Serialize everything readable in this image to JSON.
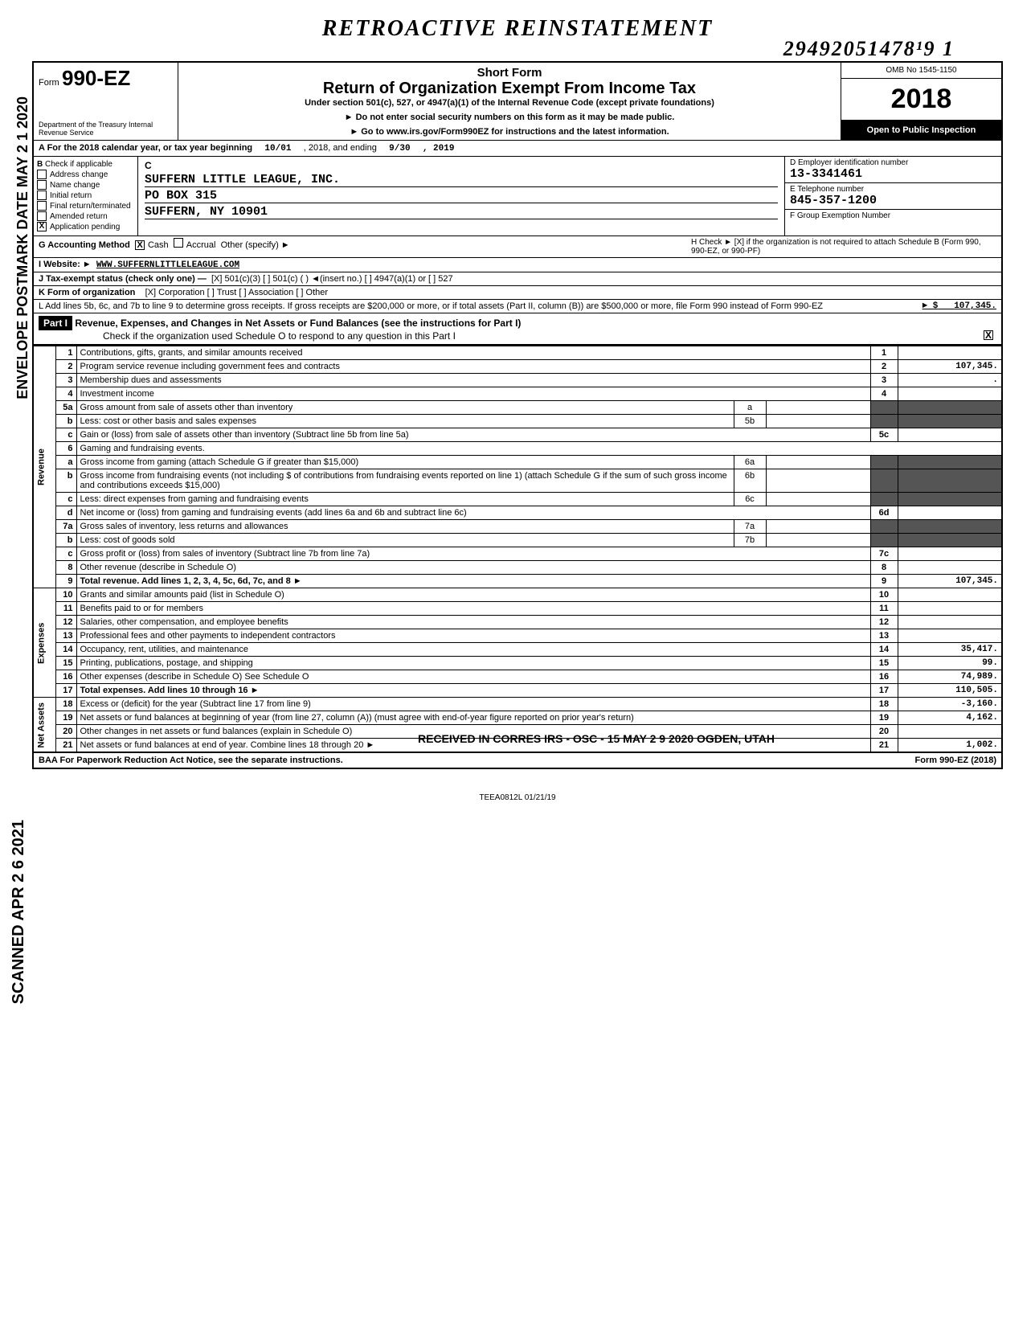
{
  "annotations": {
    "top_handwritten": "RETROACTIVE   REINSTATEMENT",
    "dln": "29492051478¹9  1",
    "side_left_top": "ENVELOPE\nPOSTMARK DATE MAY 2 1 2020",
    "side_left_bottom": "SCANNED APR 2 6 2021",
    "received_stamp": "RECEIVED IN CORRES\nIRS - OSC - 15\nMAY 2 9 2020\nOGDEN, UTAH"
  },
  "header": {
    "form_prefix": "Form",
    "form_number": "990-EZ",
    "dept": "Department of the Treasury\nInternal Revenue Service",
    "short_form": "Short Form",
    "title": "Return of Organization Exempt From Income Tax",
    "under_section": "Under section 501(c), 527, or 4947(a)(1) of the Internal Revenue Code (except private foundations)",
    "warn1": "► Do not enter social security numbers on this form as it may be made public.",
    "warn2": "► Go to www.irs.gov/Form990EZ for instructions and the latest information.",
    "omb": "OMB No 1545-1150",
    "year": "2018",
    "open_public": "Open to Public Inspection"
  },
  "row_a": {
    "label": "A  For the 2018 calendar year, or tax year beginning",
    "begin": "10/01",
    "mid": ", 2018, and ending",
    "end_month": "9/30",
    "end_year": ", 2019"
  },
  "section_b": {
    "label": "B",
    "check_if": "Check if applicable",
    "items": [
      {
        "label": "Address change",
        "checked": false
      },
      {
        "label": "Name change",
        "checked": false
      },
      {
        "label": "Initial return",
        "checked": false
      },
      {
        "label": "Final return/terminated",
        "checked": false
      },
      {
        "label": "Amended return",
        "checked": false
      },
      {
        "label": "Application pending",
        "checked": true
      }
    ]
  },
  "section_c": {
    "label": "C",
    "name": "SUFFERN LITTLE LEAGUE, INC.",
    "addr1": "PO BOX 315",
    "addr2": "SUFFERN, NY 10901"
  },
  "section_d": {
    "label": "D  Employer identification number",
    "value": "13-3341461"
  },
  "section_e": {
    "label": "E  Telephone number",
    "value": "845-357-1200"
  },
  "section_f": {
    "label": "F  Group Exemption Number",
    "value": ""
  },
  "row_g": {
    "label_g": "G  Accounting Method",
    "cash": "Cash",
    "cash_checked": true,
    "accrual": "Accrual",
    "other": "Other (specify) ►",
    "label_h": "H  Check ► [X] if the organization is not required to attach Schedule B (Form 990, 990-EZ, or 990-PF)"
  },
  "row_i": {
    "label": "I   Website: ►",
    "value": "WWW.SUFFERNLITTLELEAGUE.COM"
  },
  "row_j": {
    "label": "J  Tax-exempt status (check only one) —",
    "opts": "[X] 501(c)(3)    [ ] 501(c) (    ) ◄(insert no.)    [ ] 4947(a)(1) or    [ ] 527"
  },
  "row_k": {
    "label": "K  Form of organization",
    "opts": "[X] Corporation    [ ] Trust    [ ] Association    [ ] Other"
  },
  "row_l": {
    "text": "L  Add lines 5b, 6c, and 7b to line 9 to determine gross receipts. If gross receipts are $200,000 or more, or if total assets (Part II, column (B)) are $500,000 or more, file Form 990 instead of Form 990-EZ",
    "arrow": "► $",
    "amount": "107,345."
  },
  "part1": {
    "header_black": "Part I",
    "header_rest": "Revenue, Expenses, and Changes in Net Assets or Fund Balances (see the instructions for Part I)",
    "check_line": "Check if the organization used Schedule O to respond to any question in this Part I",
    "check_checked": true
  },
  "lines": {
    "revenue_label": "Revenue",
    "expenses_label": "Expenses",
    "netassets_label": "Net Assets",
    "r": [
      {
        "n": "1",
        "desc": "Contributions, gifts, grants, and similar amounts received",
        "ln": "1",
        "amt": ""
      },
      {
        "n": "2",
        "desc": "Program service revenue including government fees and contracts",
        "ln": "2",
        "amt": "107,345."
      },
      {
        "n": "3",
        "desc": "Membership dues and assessments",
        "ln": "3",
        "amt": "."
      },
      {
        "n": "4",
        "desc": "Investment income",
        "ln": "4",
        "amt": ""
      },
      {
        "n": "5a",
        "desc": "Gross amount from sale of assets other than inventory",
        "sub": "a"
      },
      {
        "n": "b",
        "desc": "Less: cost or other basis and sales expenses",
        "sub": "5b"
      },
      {
        "n": "c",
        "desc": "Gain or (loss) from sale of assets other than inventory (Subtract line 5b from line 5a)",
        "ln": "5c",
        "amt": ""
      },
      {
        "n": "6",
        "desc": "Gaming and fundraising events."
      },
      {
        "n": "a",
        "desc": "Gross income from gaming (attach Schedule G if greater than $15,000)",
        "sub": "6a"
      },
      {
        "n": "b",
        "desc": "Gross income from fundraising events (not including $              of contributions from fundraising events reported on line 1) (attach Schedule G if the sum of such gross income and contributions exceeds $15,000)",
        "sub": "6b"
      },
      {
        "n": "c",
        "desc": "Less: direct expenses from gaming and fundraising events",
        "sub": "6c"
      },
      {
        "n": "d",
        "desc": "Net income or (loss) from gaming and fundraising events (add lines 6a and 6b and subtract line 6c)",
        "ln": "6d",
        "amt": ""
      },
      {
        "n": "7a",
        "desc": "Gross sales of inventory, less returns and allowances",
        "sub": "7a"
      },
      {
        "n": "b",
        "desc": "Less: cost of goods sold",
        "sub": "7b"
      },
      {
        "n": "c",
        "desc": "Gross profit or (loss) from sales of inventory (Subtract line 7b from line 7a)",
        "ln": "7c",
        "amt": ""
      },
      {
        "n": "8",
        "desc": "Other revenue (describe in Schedule O)",
        "ln": "8",
        "amt": ""
      },
      {
        "n": "9",
        "desc": "Total revenue. Add lines 1, 2, 3, 4, 5c, 6d, 7c, and 8",
        "ln": "9",
        "amt": "107,345.",
        "bold": true,
        "arrow": true
      }
    ],
    "e": [
      {
        "n": "10",
        "desc": "Grants and similar amounts paid (list in Schedule O)",
        "ln": "10",
        "amt": ""
      },
      {
        "n": "11",
        "desc": "Benefits paid to or for members",
        "ln": "11",
        "amt": ""
      },
      {
        "n": "12",
        "desc": "Salaries, other compensation, and employee benefits",
        "ln": "12",
        "amt": ""
      },
      {
        "n": "13",
        "desc": "Professional fees and other payments to independent contractors",
        "ln": "13",
        "amt": ""
      },
      {
        "n": "14",
        "desc": "Occupancy, rent, utilities, and maintenance",
        "ln": "14",
        "amt": "35,417."
      },
      {
        "n": "15",
        "desc": "Printing, publications, postage, and shipping",
        "ln": "15",
        "amt": "99."
      },
      {
        "n": "16",
        "desc": "Other expenses (describe in Schedule O)                                   See Schedule O",
        "ln": "16",
        "amt": "74,989."
      },
      {
        "n": "17",
        "desc": "Total expenses. Add lines 10 through 16",
        "ln": "17",
        "amt": "110,505.",
        "bold": true,
        "arrow": true
      }
    ],
    "na": [
      {
        "n": "18",
        "desc": "Excess or (deficit) for the year (Subtract line 17 from line 9)",
        "ln": "18",
        "amt": "-3,160."
      },
      {
        "n": "19",
        "desc": "Net assets or fund balances at beginning of year (from line 27, column (A)) (must agree with end-of-year figure reported on prior year's return)",
        "ln": "19",
        "amt": "4,162."
      },
      {
        "n": "20",
        "desc": "Other changes in net assets or fund balances (explain in Schedule O)",
        "ln": "20",
        "amt": ""
      },
      {
        "n": "21",
        "desc": "Net assets or fund balances at end of year. Combine lines 18 through 20",
        "ln": "21",
        "amt": "1,002.",
        "arrow": true
      }
    ]
  },
  "footer": {
    "baa": "BAA  For Paperwork Reduction Act Notice, see the separate instructions.",
    "form": "Form 990-EZ (2018)",
    "code": "TEEA0812L   01/21/19"
  },
  "colors": {
    "black": "#000000",
    "white": "#ffffff",
    "shade": "#555555"
  }
}
